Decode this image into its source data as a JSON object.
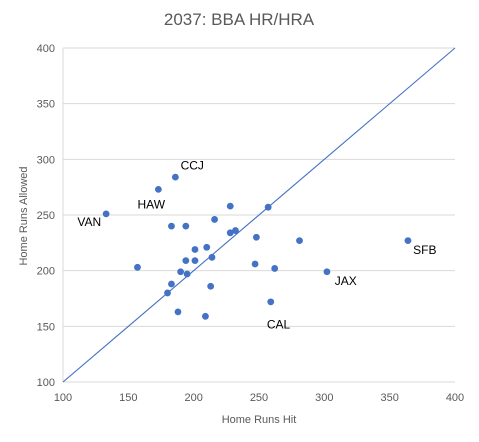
{
  "colors": {
    "point": "#4472c4",
    "ref_line": "#4472c4",
    "grid": "#d9d9d9",
    "text": "#595959"
  },
  "chart_data": {
    "type": "scatter",
    "title": "2037: BBA HR/HRA",
    "xlabel": "Home Runs Hit",
    "ylabel": "Home Runs Allowed",
    "xlim": [
      100,
      400
    ],
    "ylim": [
      100,
      400
    ],
    "xticks": [
      100,
      150,
      200,
      250,
      300,
      350,
      400
    ],
    "yticks": [
      100,
      150,
      200,
      250,
      300,
      350,
      400
    ],
    "grid": "horizontal",
    "legend": "none",
    "reference_line": {
      "from": [
        100,
        100
      ],
      "to": [
        400,
        400
      ]
    },
    "points": [
      {
        "x": 133,
        "y": 251
      },
      {
        "x": 157,
        "y": 203
      },
      {
        "x": 173,
        "y": 273
      },
      {
        "x": 186,
        "y": 284
      },
      {
        "x": 183,
        "y": 240
      },
      {
        "x": 194,
        "y": 240
      },
      {
        "x": 216,
        "y": 246
      },
      {
        "x": 228,
        "y": 258
      },
      {
        "x": 257,
        "y": 257
      },
      {
        "x": 228,
        "y": 234
      },
      {
        "x": 232,
        "y": 236
      },
      {
        "x": 248,
        "y": 230
      },
      {
        "x": 281,
        "y": 227
      },
      {
        "x": 364,
        "y": 227
      },
      {
        "x": 201,
        "y": 219
      },
      {
        "x": 210,
        "y": 221
      },
      {
        "x": 194,
        "y": 209
      },
      {
        "x": 201,
        "y": 209
      },
      {
        "x": 214,
        "y": 212
      },
      {
        "x": 247,
        "y": 206
      },
      {
        "x": 262,
        "y": 202
      },
      {
        "x": 302,
        "y": 199
      },
      {
        "x": 190,
        "y": 199
      },
      {
        "x": 195,
        "y": 197
      },
      {
        "x": 183,
        "y": 188
      },
      {
        "x": 213,
        "y": 186
      },
      {
        "x": 180,
        "y": 180
      },
      {
        "x": 259,
        "y": 172
      },
      {
        "x": 188,
        "y": 163
      },
      {
        "x": 209,
        "y": 159
      }
    ],
    "annotations": [
      {
        "text": "CCJ",
        "x": 190,
        "y": 291
      },
      {
        "text": "HAW",
        "x": 157,
        "y": 256
      },
      {
        "text": "VAN",
        "x": 111,
        "y": 240
      },
      {
        "text": "SFB",
        "x": 368,
        "y": 215
      },
      {
        "text": "JAX",
        "x": 308,
        "y": 187
      },
      {
        "text": "CAL",
        "x": 256,
        "y": 148
      }
    ]
  }
}
